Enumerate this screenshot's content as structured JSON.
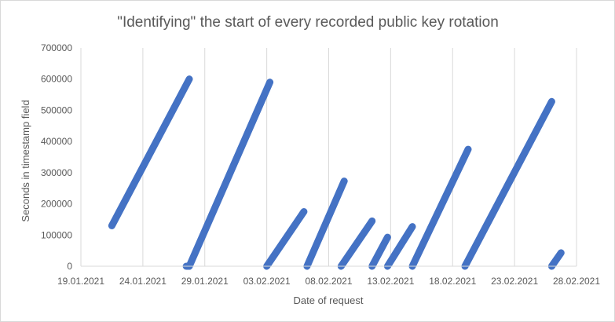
{
  "chart_data": {
    "type": "scatter",
    "title": "\"Identifying\" the start of every recorded public key rotation",
    "xlabel": "Date of request",
    "ylabel": "Seconds in timestamp field",
    "xlim": [
      "2021-01-19",
      "2021-02-28"
    ],
    "ylim": [
      0,
      700000
    ],
    "x_ticks": [
      "19.01.2021",
      "24.01.2021",
      "29.01.2021",
      "03.02.2021",
      "08.02.2021",
      "13.02.2021",
      "18.02.2021",
      "23.02.2021",
      "28.02.2021"
    ],
    "y_ticks": [
      "0",
      "100000",
      "200000",
      "300000",
      "400000",
      "500000",
      "600000",
      "700000"
    ],
    "grid": "vertical",
    "legend": "none",
    "color": "#4472c4",
    "series": [
      {
        "points": [
          {
            "x": "2021-01-21T12:00",
            "y": 130000
          },
          {
            "x": "2021-01-27T18:00",
            "y": 600000
          }
        ]
      },
      {
        "points": [
          {
            "x": "2021-01-27T12:00",
            "y": 0
          },
          {
            "x": "2021-01-27T18:00",
            "y": 0
          }
        ]
      },
      {
        "points": [
          {
            "x": "2021-01-27T18:00",
            "y": 0
          },
          {
            "x": "2021-02-03T06:00",
            "y": 590000
          }
        ]
      },
      {
        "points": [
          {
            "x": "2021-02-03T00:00",
            "y": 0
          },
          {
            "x": "2021-02-06T00:00",
            "y": 175000
          }
        ]
      },
      {
        "points": [
          {
            "x": "2021-02-06T06:00",
            "y": 0
          },
          {
            "x": "2021-02-09T06:00",
            "y": 273000
          }
        ]
      },
      {
        "points": [
          {
            "x": "2021-02-09T00:00",
            "y": 0
          },
          {
            "x": "2021-02-11T12:00",
            "y": 145000
          }
        ]
      },
      {
        "points": [
          {
            "x": "2021-02-11T12:00",
            "y": 0
          },
          {
            "x": "2021-02-12T18:00",
            "y": 93000
          }
        ]
      },
      {
        "points": [
          {
            "x": "2021-02-12T18:00",
            "y": 0
          },
          {
            "x": "2021-02-14T18:00",
            "y": 127000
          }
        ]
      },
      {
        "points": [
          {
            "x": "2021-02-14T18:00",
            "y": 0
          },
          {
            "x": "2021-02-19T06:00",
            "y": 375000
          }
        ]
      },
      {
        "points": [
          {
            "x": "2021-02-19T00:00",
            "y": 0
          },
          {
            "x": "2021-02-26T00:00",
            "y": 528000
          }
        ]
      },
      {
        "points": [
          {
            "x": "2021-02-26T00:00",
            "y": 0
          },
          {
            "x": "2021-02-26T18:00",
            "y": 43000
          }
        ]
      }
    ]
  }
}
